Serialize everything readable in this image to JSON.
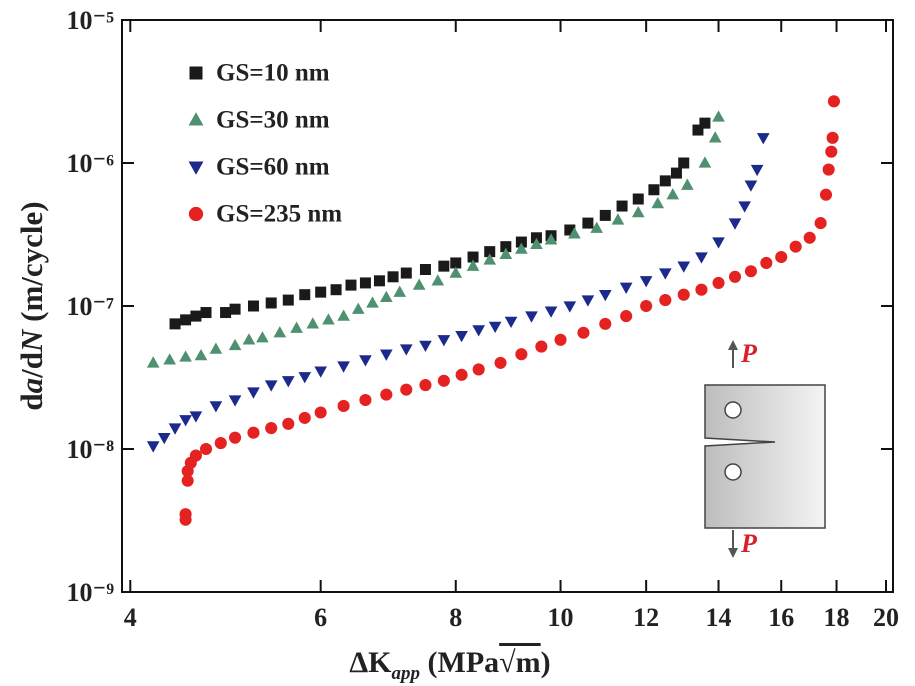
{
  "chart_data": {
    "type": "scatter",
    "xlabel": [
      "ΔK",
      "app",
      " (MPa",
      "√m",
      ")"
    ],
    "ylabel": [
      "d",
      "a",
      "/d",
      "N",
      " (m/cycle)"
    ],
    "xscale": "log",
    "yscale": "log",
    "xlim": [
      3.93,
      20.3
    ],
    "ylim": [
      1e-09,
      1e-05
    ],
    "xticks": [
      4,
      6,
      8,
      10,
      12,
      14,
      16,
      18,
      20
    ],
    "yticks": [
      {
        "value": 1e-09,
        "label": "10⁻⁹"
      },
      {
        "value": 1e-08,
        "label": "10⁻⁸"
      },
      {
        "value": 1e-07,
        "label": "10⁻⁷"
      },
      {
        "value": 1e-06,
        "label": "10⁻⁶"
      },
      {
        "value": 1e-05,
        "label": "10⁻⁵"
      }
    ],
    "legend": "upper left",
    "annotations": [
      "P",
      "P"
    ],
    "series": [
      {
        "name": "GS=10 nm",
        "color": "#1a1a1a",
        "marker": "square",
        "x": [
          4.4,
          4.5,
          4.6,
          4.7,
          4.9,
          5.0,
          5.2,
          5.4,
          5.6,
          5.8,
          6.0,
          6.2,
          6.4,
          6.6,
          6.8,
          7.0,
          7.2,
          7.5,
          7.8,
          8.0,
          8.3,
          8.6,
          8.9,
          9.2,
          9.5,
          9.8,
          10.2,
          10.6,
          11.0,
          11.4,
          11.8,
          12.2,
          12.5,
          12.8,
          13.0,
          13.4,
          13.6
        ],
        "values": [
          7.5e-08,
          8e-08,
          8.5e-08,
          9e-08,
          9e-08,
          9.5e-08,
          1e-07,
          1.05e-07,
          1.1e-07,
          1.2e-07,
          1.25e-07,
          1.3e-07,
          1.4e-07,
          1.45e-07,
          1.5e-07,
          1.6e-07,
          1.7e-07,
          1.8e-07,
          1.9e-07,
          2e-07,
          2.2e-07,
          2.4e-07,
          2.6e-07,
          2.8e-07,
          3e-07,
          3.1e-07,
          3.4e-07,
          3.8e-07,
          4.3e-07,
          5e-07,
          5.6e-07,
          6.5e-07,
          7.5e-07,
          8.5e-07,
          1e-06,
          1.7e-06,
          1.9e-06
        ]
      },
      {
        "name": "GS=30 nm",
        "color": "#4f9070",
        "marker": "triangle-up",
        "x": [
          4.2,
          4.35,
          4.5,
          4.65,
          4.8,
          5.0,
          5.15,
          5.3,
          5.5,
          5.7,
          5.9,
          6.1,
          6.3,
          6.5,
          6.7,
          6.9,
          7.1,
          7.4,
          7.7,
          8.0,
          8.3,
          8.6,
          8.9,
          9.2,
          9.5,
          9.8,
          10.3,
          10.8,
          11.3,
          11.8,
          12.3,
          12.7,
          13.1,
          13.6,
          13.9,
          14.0
        ],
        "values": [
          4e-08,
          4.2e-08,
          4.4e-08,
          4.5e-08,
          5e-08,
          5.3e-08,
          5.8e-08,
          6e-08,
          6.5e-08,
          7e-08,
          7.5e-08,
          8e-08,
          8.5e-08,
          9.5e-08,
          1.05e-07,
          1.15e-07,
          1.25e-07,
          1.4e-07,
          1.5e-07,
          1.7e-07,
          1.9e-07,
          2.1e-07,
          2.3e-07,
          2.5e-07,
          2.7e-07,
          2.9e-07,
          3.2e-07,
          3.5e-07,
          4e-07,
          4.5e-07,
          5.2e-07,
          6e-07,
          7e-07,
          1e-06,
          1.5e-06,
          2.1e-06
        ]
      },
      {
        "name": "GS=60 nm",
        "color": "#1c2a8c",
        "marker": "triangle-down",
        "x": [
          4.2,
          4.3,
          4.4,
          4.5,
          4.6,
          4.8,
          5.0,
          5.2,
          5.4,
          5.6,
          5.8,
          6.0,
          6.3,
          6.6,
          6.9,
          7.2,
          7.5,
          7.8,
          8.1,
          8.4,
          8.7,
          9.0,
          9.4,
          9.8,
          10.2,
          10.6,
          11.0,
          11.5,
          12.0,
          12.5,
          13.0,
          13.5,
          14.0,
          14.5,
          14.8,
          15.0,
          15.2,
          15.4
        ],
        "values": [
          1.05e-08,
          1.2e-08,
          1.4e-08,
          1.6e-08,
          1.7e-08,
          2e-08,
          2.2e-08,
          2.5e-08,
          2.8e-08,
          3e-08,
          3.2e-08,
          3.5e-08,
          3.8e-08,
          4.2e-08,
          4.6e-08,
          5e-08,
          5.3e-08,
          5.8e-08,
          6.2e-08,
          6.8e-08,
          7.2e-08,
          7.8e-08,
          8.5e-08,
          9.2e-08,
          1e-07,
          1.1e-07,
          1.2e-07,
          1.35e-07,
          1.5e-07,
          1.7e-07,
          1.9e-07,
          2.2e-07,
          2.8e-07,
          3.8e-07,
          5e-07,
          7e-07,
          9e-07,
          1.5e-06
        ]
      },
      {
        "name": "GS=235 nm",
        "color": "#e52222",
        "marker": "circle",
        "x": [
          4.5,
          4.5,
          4.52,
          4.52,
          4.55,
          4.6,
          4.7,
          4.85,
          5.0,
          5.2,
          5.4,
          5.6,
          5.8,
          6.0,
          6.3,
          6.6,
          6.9,
          7.2,
          7.5,
          7.8,
          8.1,
          8.4,
          8.8,
          9.2,
          9.6,
          10.0,
          10.5,
          11.0,
          11.5,
          12.0,
          12.5,
          13.0,
          13.5,
          14.0,
          14.5,
          15.0,
          15.5,
          16.0,
          16.5,
          17.0,
          17.4,
          17.6,
          17.7,
          17.8,
          17.85,
          17.9
        ],
        "values": [
          3.2e-09,
          3.5e-09,
          6e-09,
          7e-09,
          8e-09,
          9e-09,
          1e-08,
          1.1e-08,
          1.2e-08,
          1.3e-08,
          1.4e-08,
          1.5e-08,
          1.65e-08,
          1.8e-08,
          2e-08,
          2.2e-08,
          2.4e-08,
          2.6e-08,
          2.8e-08,
          3e-08,
          3.3e-08,
          3.6e-08,
          4e-08,
          4.6e-08,
          5.2e-08,
          5.8e-08,
          6.5e-08,
          7.5e-08,
          8.5e-08,
          1e-07,
          1.1e-07,
          1.2e-07,
          1.3e-07,
          1.45e-07,
          1.6e-07,
          1.75e-07,
          2e-07,
          2.2e-07,
          2.6e-07,
          3e-07,
          3.8e-07,
          6e-07,
          9e-07,
          1.2e-06,
          1.5e-06,
          2.7e-06
        ]
      }
    ]
  }
}
